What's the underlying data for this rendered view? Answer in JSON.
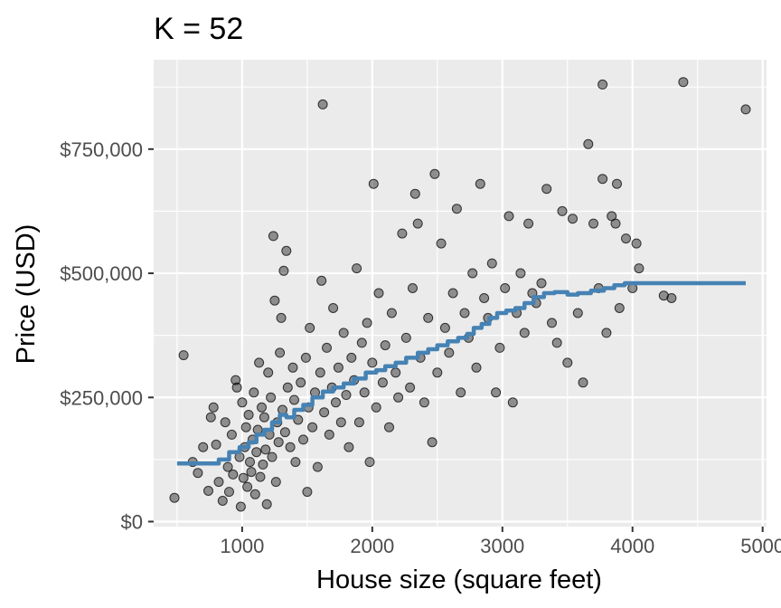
{
  "chart_data": {
    "type": "scatter",
    "title": "K = 52",
    "xlabel": "House size (square feet)",
    "ylabel": "Price (USD)",
    "xlim": [
      320,
      5030
    ],
    "ylim": [
      -10000,
      930000
    ],
    "x_ticks": [
      1000,
      2000,
      3000,
      4000,
      5000
    ],
    "x_tick_labels": [
      "1000",
      "2000",
      "3000",
      "4000",
      "5000"
    ],
    "y_ticks": [
      0,
      250000,
      500000,
      750000
    ],
    "y_tick_labels": [
      "$0",
      "$250,000",
      "$500,000",
      "$750,000"
    ],
    "grid": true,
    "legend": "none",
    "colors": {
      "panel_background": "#ebebeb",
      "grid_major": "#ffffff",
      "points": "#000000",
      "fit_line": "#4682b4"
    },
    "series": [
      {
        "type": "scatter",
        "points": [
          [
            480,
            48000
          ],
          [
            550,
            335000
          ],
          [
            620,
            120000
          ],
          [
            660,
            98000
          ],
          [
            700,
            150000
          ],
          [
            740,
            62000
          ],
          [
            760,
            210000
          ],
          [
            780,
            230000
          ],
          [
            800,
            155000
          ],
          [
            820,
            80000
          ],
          [
            850,
            42000
          ],
          [
            870,
            200000
          ],
          [
            890,
            110000
          ],
          [
            900,
            60000
          ],
          [
            920,
            175000
          ],
          [
            930,
            95000
          ],
          [
            950,
            285000
          ],
          [
            960,
            270000
          ],
          [
            980,
            130000
          ],
          [
            990,
            30000
          ],
          [
            1000,
            240000
          ],
          [
            1010,
            88000
          ],
          [
            1020,
            150000
          ],
          [
            1030,
            190000
          ],
          [
            1040,
            70000
          ],
          [
            1050,
            215000
          ],
          [
            1060,
            120000
          ],
          [
            1070,
            100000
          ],
          [
            1080,
            165000
          ],
          [
            1090,
            260000
          ],
          [
            1100,
            55000
          ],
          [
            1110,
            140000
          ],
          [
            1120,
            185000
          ],
          [
            1130,
            320000
          ],
          [
            1140,
            90000
          ],
          [
            1150,
            230000
          ],
          [
            1160,
            115000
          ],
          [
            1170,
            210000
          ],
          [
            1180,
            145000
          ],
          [
            1190,
            35000
          ],
          [
            1200,
            300000
          ],
          [
            1210,
            175000
          ],
          [
            1220,
            250000
          ],
          [
            1230,
            130000
          ],
          [
            1240,
            575000
          ],
          [
            1250,
            445000
          ],
          [
            1260,
            80000
          ],
          [
            1270,
            200000
          ],
          [
            1280,
            160000
          ],
          [
            1290,
            340000
          ],
          [
            1300,
            410000
          ],
          [
            1310,
            225000
          ],
          [
            1320,
            505000
          ],
          [
            1330,
            180000
          ],
          [
            1340,
            545000
          ],
          [
            1350,
            270000
          ],
          [
            1370,
            150000
          ],
          [
            1390,
            310000
          ],
          [
            1400,
            245000
          ],
          [
            1410,
            120000
          ],
          [
            1430,
            205000
          ],
          [
            1450,
            280000
          ],
          [
            1470,
            165000
          ],
          [
            1490,
            330000
          ],
          [
            1500,
            60000
          ],
          [
            1510,
            230000
          ],
          [
            1520,
            390000
          ],
          [
            1540,
            190000
          ],
          [
            1560,
            260000
          ],
          [
            1580,
            110000
          ],
          [
            1600,
            300000
          ],
          [
            1610,
            485000
          ],
          [
            1620,
            840000
          ],
          [
            1630,
            220000
          ],
          [
            1650,
            350000
          ],
          [
            1670,
            175000
          ],
          [
            1690,
            270000
          ],
          [
            1700,
            430000
          ],
          [
            1720,
            240000
          ],
          [
            1740,
            310000
          ],
          [
            1760,
            200000
          ],
          [
            1780,
            380000
          ],
          [
            1800,
            255000
          ],
          [
            1820,
            150000
          ],
          [
            1840,
            330000
          ],
          [
            1860,
            285000
          ],
          [
            1880,
            510000
          ],
          [
            1900,
            200000
          ],
          [
            1920,
            360000
          ],
          [
            1940,
            260000
          ],
          [
            1960,
            400000
          ],
          [
            1980,
            120000
          ],
          [
            2000,
            320000
          ],
          [
            2010,
            680000
          ],
          [
            2030,
            230000
          ],
          [
            2050,
            460000
          ],
          [
            2080,
            280000
          ],
          [
            2100,
            355000
          ],
          [
            2130,
            190000
          ],
          [
            2150,
            420000
          ],
          [
            2180,
            300000
          ],
          [
            2200,
            250000
          ],
          [
            2230,
            580000
          ],
          [
            2260,
            370000
          ],
          [
            2290,
            270000
          ],
          [
            2310,
            470000
          ],
          [
            2330,
            660000
          ],
          [
            2350,
            600000
          ],
          [
            2370,
            330000
          ],
          [
            2400,
            240000
          ],
          [
            2430,
            410000
          ],
          [
            2460,
            160000
          ],
          [
            2480,
            700000
          ],
          [
            2500,
            300000
          ],
          [
            2530,
            560000
          ],
          [
            2560,
            390000
          ],
          [
            2590,
            340000
          ],
          [
            2620,
            460000
          ],
          [
            2650,
            630000
          ],
          [
            2680,
            260000
          ],
          [
            2710,
            420000
          ],
          [
            2740,
            370000
          ],
          [
            2770,
            500000
          ],
          [
            2800,
            310000
          ],
          [
            2830,
            680000
          ],
          [
            2860,
            450000
          ],
          [
            2890,
            410000
          ],
          [
            2920,
            520000
          ],
          [
            2950,
            260000
          ],
          [
            2980,
            350000
          ],
          [
            3020,
            470000
          ],
          [
            3050,
            615000
          ],
          [
            3080,
            240000
          ],
          [
            3110,
            420000
          ],
          [
            3140,
            500000
          ],
          [
            3170,
            380000
          ],
          [
            3200,
            600000
          ],
          [
            3230,
            460000
          ],
          [
            3260,
            440000
          ],
          [
            3300,
            480000
          ],
          [
            3340,
            670000
          ],
          [
            3380,
            400000
          ],
          [
            3420,
            360000
          ],
          [
            3460,
            625000
          ],
          [
            3500,
            320000
          ],
          [
            3540,
            610000
          ],
          [
            3580,
            420000
          ],
          [
            3620,
            280000
          ],
          [
            3660,
            760000
          ],
          [
            3700,
            600000
          ],
          [
            3740,
            470000
          ],
          [
            3770,
            690000
          ],
          [
            3800,
            380000
          ],
          [
            3840,
            615000
          ],
          [
            3870,
            600000
          ],
          [
            3880,
            680000
          ],
          [
            3900,
            430000
          ],
          [
            3950,
            570000
          ],
          [
            4000,
            470000
          ],
          [
            4030,
            560000
          ],
          [
            4050,
            510000
          ],
          [
            4240,
            455000
          ],
          [
            4300,
            450000
          ],
          [
            4390,
            885000
          ],
          [
            4870,
            830000
          ],
          [
            3770,
            880000
          ]
        ]
      },
      {
        "type": "line",
        "step": true,
        "points": [
          [
            500,
            117000
          ],
          [
            760,
            117000
          ],
          [
            820,
            125000
          ],
          [
            900,
            140000
          ],
          [
            980,
            150000
          ],
          [
            1050,
            160000
          ],
          [
            1110,
            175000
          ],
          [
            1170,
            185000
          ],
          [
            1230,
            200000
          ],
          [
            1290,
            215000
          ],
          [
            1340,
            210000
          ],
          [
            1400,
            225000
          ],
          [
            1470,
            235000
          ],
          [
            1540,
            250000
          ],
          [
            1620,
            262000
          ],
          [
            1700,
            270000
          ],
          [
            1780,
            278000
          ],
          [
            1860,
            288000
          ],
          [
            1950,
            300000
          ],
          [
            2030,
            305000
          ],
          [
            2100,
            313000
          ],
          [
            2180,
            320000
          ],
          [
            2260,
            330000
          ],
          [
            2350,
            340000
          ],
          [
            2430,
            347000
          ],
          [
            2500,
            355000
          ],
          [
            2580,
            363000
          ],
          [
            2660,
            370000
          ],
          [
            2730,
            378000
          ],
          [
            2780,
            390000
          ],
          [
            2840,
            398000
          ],
          [
            2900,
            410000
          ],
          [
            2960,
            420000
          ],
          [
            3030,
            425000
          ],
          [
            3100,
            430000
          ],
          [
            3170,
            440000
          ],
          [
            3240,
            452000
          ],
          [
            3320,
            460000
          ],
          [
            3400,
            462000
          ],
          [
            3500,
            457000
          ],
          [
            3580,
            460000
          ],
          [
            3680,
            465000
          ],
          [
            3780,
            470000
          ],
          [
            3860,
            476000
          ],
          [
            3940,
            480000
          ],
          [
            4870,
            480000
          ]
        ]
      }
    ]
  }
}
